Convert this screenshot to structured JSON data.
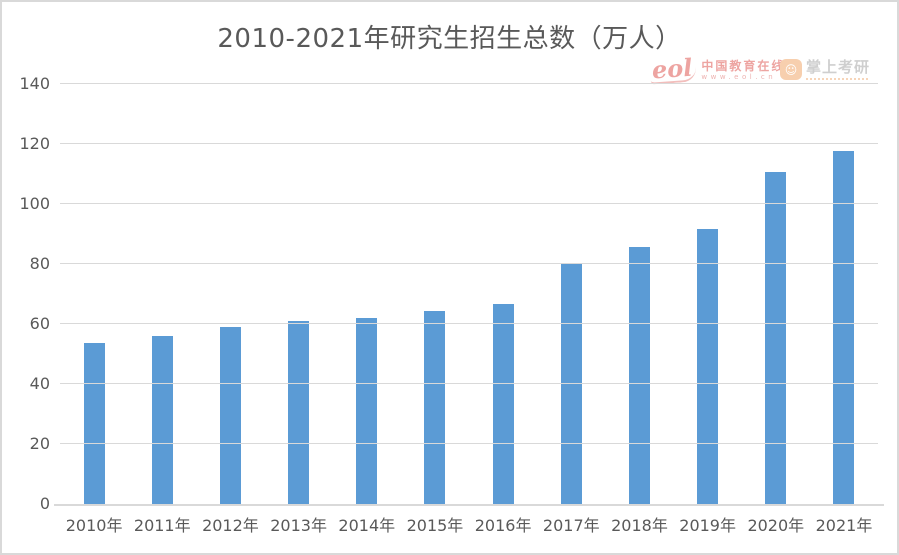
{
  "title": "2010-2021年研究生招生总数（万人）",
  "watermarks": {
    "eol": {
      "logo_text": "eol",
      "name": "中国教育在线",
      "url": "www.eol.cn"
    },
    "zsky": {
      "badge_glyph": "☺",
      "name": "掌上考研"
    }
  },
  "chart_data": {
    "type": "bar",
    "title": "2010-2021年研究生招生总数（万人）",
    "categories": [
      "2010年",
      "2011年",
      "2012年",
      "2013年",
      "2014年",
      "2015年",
      "2016年",
      "2017年",
      "2018年",
      "2019年",
      "2020年",
      "2021年"
    ],
    "values": [
      53.8,
      56.0,
      59.0,
      61.1,
      62.1,
      64.5,
      66.7,
      80.5,
      85.8,
      91.7,
      110.7,
      117.7
    ],
    "xlabel": "",
    "ylabel": "",
    "ylim": [
      0,
      140
    ],
    "yticks": [
      0,
      20,
      40,
      60,
      80,
      100,
      120,
      140
    ],
    "grid": true,
    "legend_position": "none",
    "bar_color": "#5b9bd5",
    "gridline_color": "#d9d9d9",
    "text_color": "#595959"
  }
}
